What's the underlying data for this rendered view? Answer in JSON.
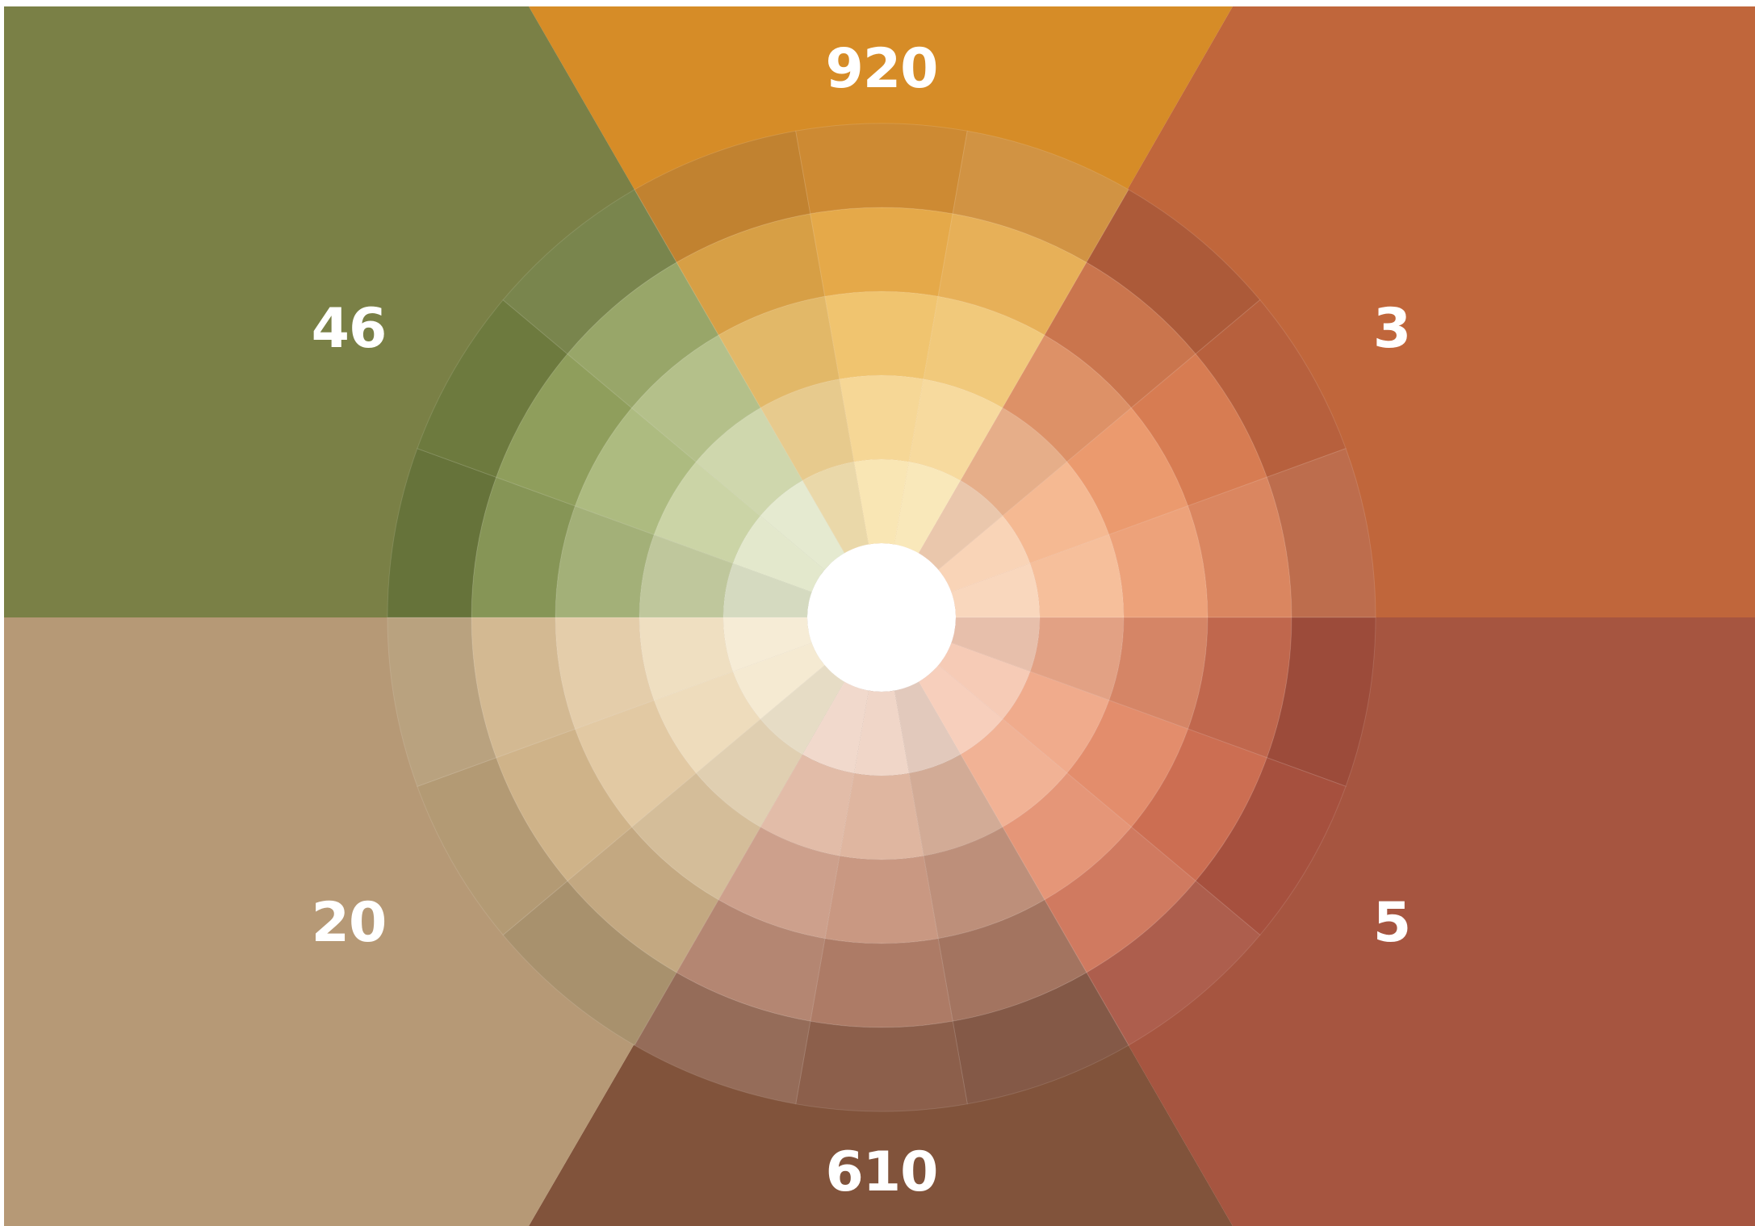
{
  "colors": {
    "background": "#ffffff",
    "center_hole": "#ffffff",
    "label_text": "#ffffff"
  },
  "sectors": [
    {
      "id": "ochre",
      "label": "920",
      "color": "#d68c27",
      "tones": [
        "#f9e6b4",
        "#f6d796",
        "#f0c46f",
        "#e5a949",
        "#cd8a33"
      ]
    },
    {
      "id": "terracotta",
      "label": "3",
      "color": "#c0663b",
      "tones": [
        "#f9d4b7",
        "#f5b992",
        "#eb9a6e",
        "#d77c52",
        "#b7603d"
      ]
    },
    {
      "id": "brick",
      "label": "5",
      "color": "#a65540",
      "tones": [
        "#f6cbb6",
        "#f0ab8c",
        "#e38d6c",
        "#cc6e52",
        "#a6503e"
      ]
    },
    {
      "id": "brown",
      "label": "610",
      "color": "#81533b",
      "tones": [
        "#f0d6c8",
        "#dfb6a0",
        "#c99882",
        "#ad7b66",
        "#8c5f4b"
      ]
    },
    {
      "id": "sand",
      "label": "20",
      "color": "#b69976",
      "tones": [
        "#f5ead2",
        "#eedcbc",
        "#e2c9a3",
        "#cfb389",
        "#b39a74"
      ]
    },
    {
      "id": "olive",
      "label": "46",
      "color": "#7a8046",
      "tones": [
        "#e3e8cc",
        "#cbd4a6",
        "#adbb80",
        "#8f9e5c",
        "#6d7a3e"
      ]
    }
  ]
}
